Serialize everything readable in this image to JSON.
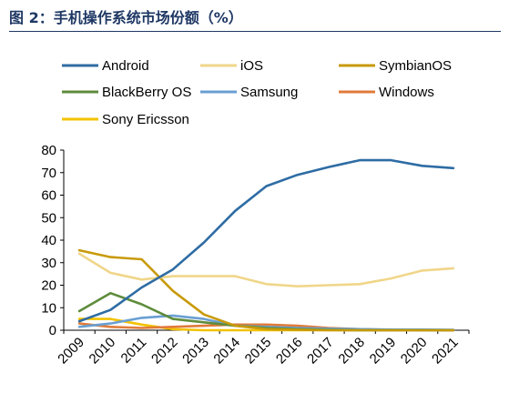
{
  "figure": {
    "title": "图 2：手机操作系统市场份额（%）"
  },
  "chart_data": {
    "type": "line",
    "title": "",
    "xlabel": "",
    "ylabel": "",
    "ylim": [
      0,
      80
    ],
    "yticks": [
      "0",
      "10",
      "20",
      "30",
      "40",
      "50",
      "60",
      "70",
      "80"
    ],
    "categories": [
      "2009",
      "2010",
      "2011",
      "2012",
      "2013",
      "2014",
      "2015",
      "2016",
      "2017",
      "2018",
      "2019",
      "2020",
      "2021"
    ],
    "legend_position": "top",
    "grid": false,
    "series": [
      {
        "name": "Android",
        "color": "#2e6ca4",
        "values": [
          4,
          9,
          19,
          27,
          39,
          53,
          64,
          69,
          72.5,
          75.5,
          75.5,
          73,
          72
        ]
      },
      {
        "name": "iOS",
        "color": "#f0d68a",
        "values": [
          34,
          25.5,
          22.5,
          24,
          24,
          24,
          20.5,
          19.5,
          20,
          20.5,
          23,
          26.5,
          27.5
        ]
      },
      {
        "name": "SymbianOS",
        "color": "#c89a0a",
        "values": [
          35.5,
          32.5,
          31.5,
          17.5,
          7,
          2,
          0.5,
          0.2,
          0,
          0,
          0,
          0,
          0
        ]
      },
      {
        "name": "BlackBerry OS",
        "color": "#5e8c3c",
        "values": [
          8.5,
          16.5,
          11.5,
          5,
          3.5,
          2,
          1,
          0.5,
          0.2,
          0,
          0,
          0,
          0
        ]
      },
      {
        "name": "Samsung",
        "color": "#6a9fd2",
        "values": [
          1.5,
          3,
          5.5,
          6.5,
          5,
          2,
          1.5,
          1,
          0.7,
          0.5,
          0.3,
          0.3,
          0.2
        ]
      },
      {
        "name": "Windows",
        "color": "#e07b39",
        "values": [
          3,
          1.5,
          1,
          1.5,
          2,
          2.5,
          2.5,
          2,
          1,
          0.5,
          0.2,
          0.1,
          0
        ]
      },
      {
        "name": "Sony Ericsson",
        "color": "#f2c200",
        "values": [
          5,
          5,
          2.5,
          0.5,
          0,
          0,
          0,
          0,
          0,
          0,
          0,
          0,
          0
        ]
      }
    ]
  }
}
